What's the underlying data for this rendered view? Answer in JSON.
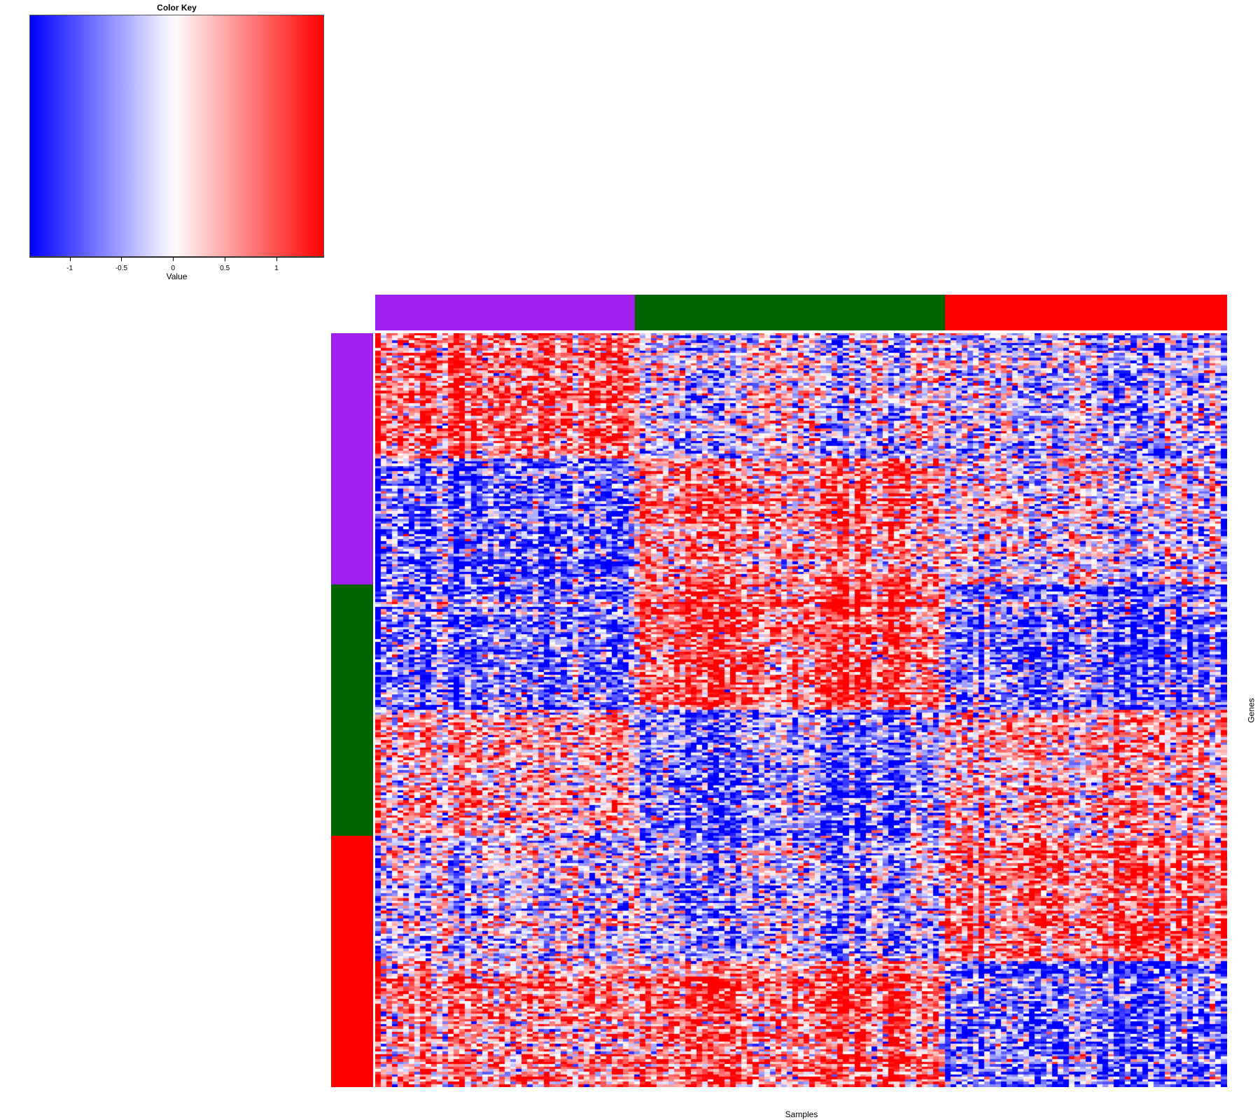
{
  "chart_data": {
    "type": "heatmap",
    "title": "",
    "xlabel": "Samples",
    "ylabel": "Genes",
    "color_key": {
      "title": "Color Key",
      "xlabel": "Value",
      "range": [
        -1.39,
        1.46
      ],
      "ticks": [
        -1,
        -0.5,
        0,
        0.5,
        1
      ],
      "tick_labels": [
        "-1",
        "-0.5",
        "0",
        "0.5",
        "1"
      ],
      "colors": [
        "#0000ff",
        "#ffffff",
        "#ff0000"
      ]
    },
    "column_groups": [
      {
        "color": "#a020f0",
        "n_samples": 46
      },
      {
        "color": "#006400",
        "n_samples": 55
      },
      {
        "color": "#ff0000",
        "n_samples": 50
      }
    ],
    "row_groups": [
      {
        "color": "#a020f0",
        "n_genes": 100
      },
      {
        "color": "#006400",
        "n_genes": 100
      },
      {
        "color": "#ff0000",
        "n_genes": 100
      }
    ],
    "row_clusters_per_group": 2,
    "block_means": [
      [
        0.8,
        -0.2,
        -0.4
      ],
      [
        -0.8,
        0.7,
        -0.1
      ],
      [
        -0.7,
        1.0,
        -0.8
      ],
      [
        0.4,
        -0.7,
        0.5
      ],
      [
        -0.2,
        -0.5,
        0.8
      ],
      [
        0.5,
        0.8,
        -0.9
      ]
    ]
  }
}
